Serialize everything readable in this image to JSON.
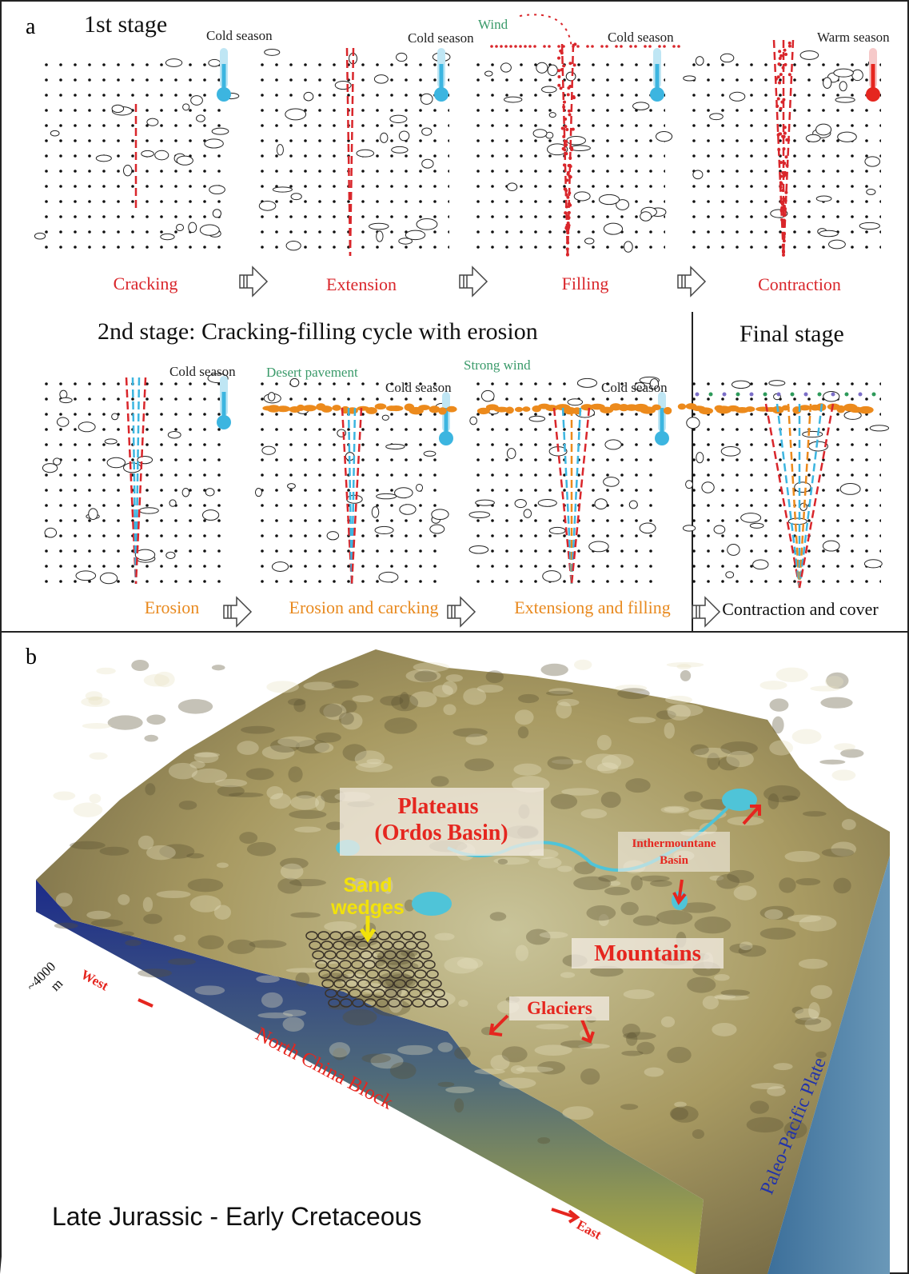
{
  "panel_a": {
    "label": "a",
    "stage1": {
      "title": "1st stage",
      "wind": "Wind",
      "steps": [
        {
          "label": "Cracking",
          "season": "Cold season"
        },
        {
          "label": "Extension",
          "season": "Cold season"
        },
        {
          "label": "Filling",
          "season": "Cold season"
        },
        {
          "label": "Contraction",
          "season": "Warm season"
        }
      ]
    },
    "stage2": {
      "title": "2nd stage: Cracking-filling cycle with erosion",
      "desert_pavement": "Desert pavement",
      "strong_wind": "Strong wind",
      "steps": [
        {
          "label": "Erosion",
          "season": "Cold season"
        },
        {
          "label": "Erosion and carcking",
          "season": "Cold season"
        },
        {
          "label": "Extensiong and filling",
          "season": "Cold season"
        }
      ]
    },
    "final_stage": {
      "title": "Final stage",
      "label": "Contraction and cover"
    }
  },
  "panel_b": {
    "label": "b",
    "plateaus": [
      "Plateaus",
      "(Ordos Basin)"
    ],
    "sand_wedges": [
      "Sand",
      "wedges"
    ],
    "basin": [
      "Inthermountane",
      "Basin"
    ],
    "mountains": "Mountains",
    "glaciers": "Glaciers",
    "depth": [
      "~4000",
      "m"
    ],
    "west": "West",
    "east": "East",
    "block": "North China Block",
    "plate": "Paleo-Pacific Plate",
    "age": "Late Jurassic - Early Cretaceous"
  }
}
